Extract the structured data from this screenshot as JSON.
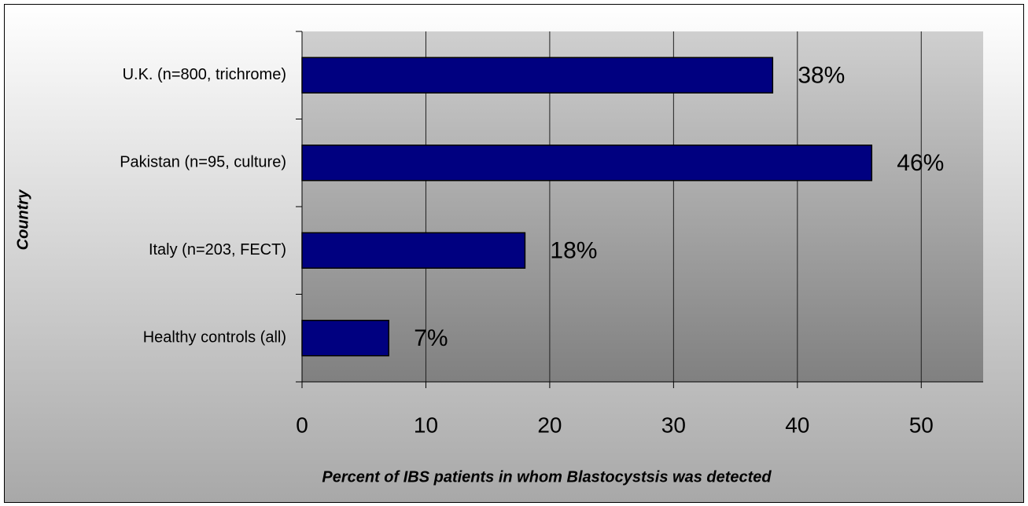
{
  "chart_data": {
    "type": "bar",
    "orientation": "horizontal",
    "x_label": "Percent of IBS patients in whom Blastocystsis was detected",
    "y_label": "Country",
    "categories": [
      "U.K. (n=800, trichrome)",
      "Pakistan (n=95, culture)",
      "Italy (n=203, FECT)",
      "Healthy controls (all)"
    ],
    "values": [
      38,
      46,
      18,
      7
    ],
    "value_labels": [
      "38%",
      "46%",
      "18%",
      "7%"
    ],
    "color": "#000080",
    "xlim": [
      0,
      55
    ],
    "xticks": [
      0,
      10,
      20,
      30,
      40,
      50
    ],
    "grid": true
  }
}
